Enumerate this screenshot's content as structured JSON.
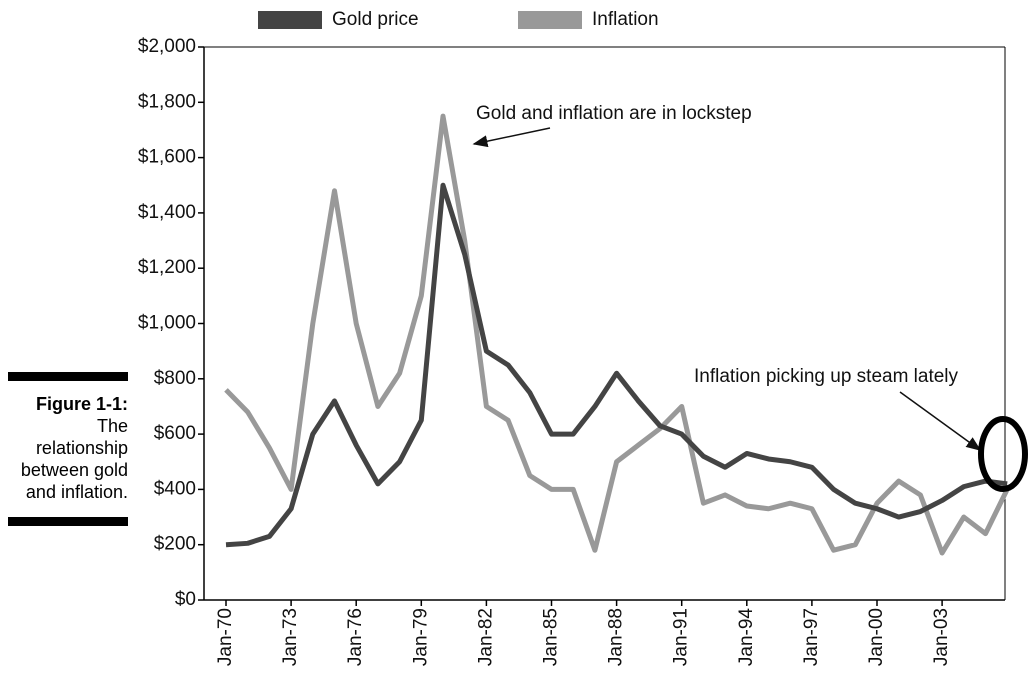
{
  "chart_data": {
    "type": "line",
    "legend_position": "top",
    "categories": [
      "Jan-70",
      null,
      null,
      "Jan-73",
      null,
      null,
      "Jan-76",
      null,
      null,
      "Jan-79",
      null,
      null,
      "Jan-82",
      null,
      null,
      "Jan-85",
      null,
      null,
      "Jan-88",
      null,
      null,
      "Jan-91",
      null,
      null,
      "Jan-94",
      null,
      null,
      "Jan-97",
      null,
      null,
      "Jan-00",
      null,
      null,
      "Jan-03",
      null,
      null,
      null
    ],
    "series": [
      {
        "name": "Gold price",
        "color": "#444444",
        "values": [
          200,
          205,
          230,
          330,
          600,
          720,
          560,
          420,
          500,
          650,
          1500,
          1250,
          900,
          850,
          750,
          600,
          600,
          700,
          820,
          720,
          630,
          600,
          520,
          480,
          530,
          510,
          500,
          480,
          400,
          350,
          330,
          300,
          320,
          360,
          410,
          430,
          420
        ]
      },
      {
        "name": "Inflation",
        "color": "#999999",
        "values": [
          760,
          680,
          550,
          400,
          1000,
          1480,
          1000,
          700,
          820,
          1100,
          1750,
          1300,
          700,
          650,
          450,
          400,
          400,
          180,
          500,
          560,
          620,
          700,
          350,
          380,
          340,
          330,
          350,
          330,
          180,
          200,
          350,
          430,
          380,
          170,
          300,
          240,
          400
        ]
      }
    ],
    "ylim": [
      0,
      2000
    ],
    "yticks": [
      {
        "value": 0,
        "label": "$0"
      },
      {
        "value": 200,
        "label": "$200"
      },
      {
        "value": 400,
        "label": "$400"
      },
      {
        "value": 600,
        "label": "$600"
      },
      {
        "value": 800,
        "label": "$800"
      },
      {
        "value": 1000,
        "label": "$1,000"
      },
      {
        "value": 1200,
        "label": "$1,200"
      },
      {
        "value": 1400,
        "label": "$1,400"
      },
      {
        "value": 1600,
        "label": "$1,600"
      },
      {
        "value": 1800,
        "label": "$1,800"
      },
      {
        "value": 2000,
        "label": "$2,000"
      }
    ],
    "annotations": [
      "Gold and inflation are in lockstep",
      "Inflation picking up steam lately"
    ]
  },
  "figure_caption": {
    "label": "Figure 1-1:",
    "text": "The relationship between gold and inflation."
  }
}
